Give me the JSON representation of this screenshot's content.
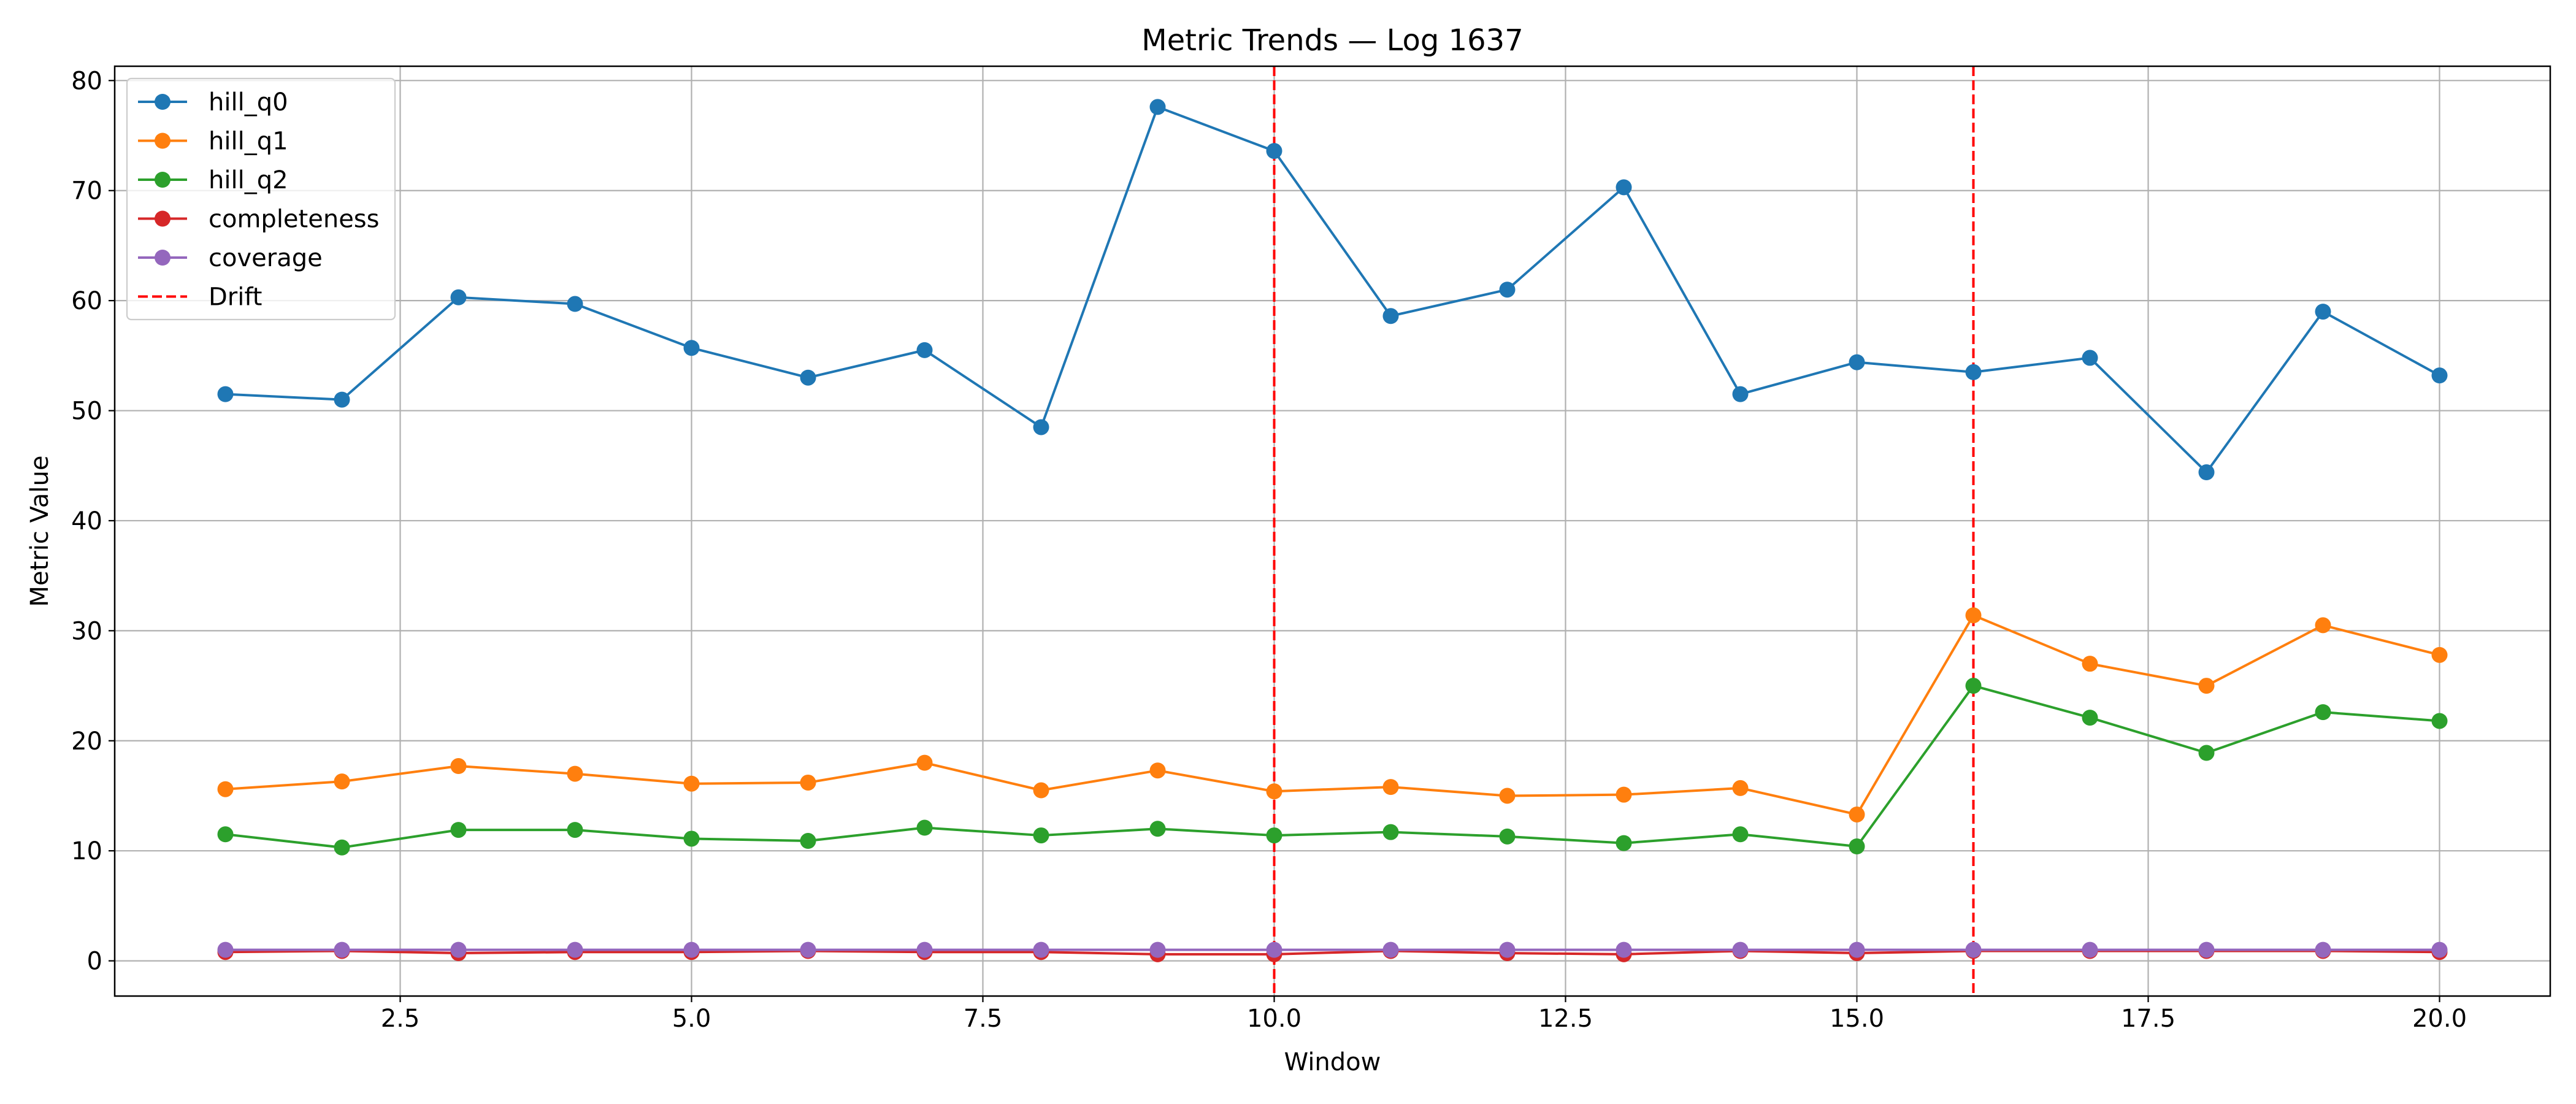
{
  "chart_data": {
    "type": "line",
    "title": "Metric Trends — Log 1637",
    "xlabel": "Window",
    "ylabel": "Metric Value",
    "x": [
      1,
      2,
      3,
      4,
      5,
      6,
      7,
      8,
      9,
      10,
      11,
      12,
      13,
      14,
      15,
      16,
      17,
      18,
      19,
      20
    ],
    "xlim": [
      0.05,
      20.95
    ],
    "ylim": [
      -3.2,
      81.3
    ],
    "xticks": [
      2.5,
      5.0,
      7.5,
      10.0,
      12.5,
      15.0,
      17.5,
      20.0
    ],
    "xtick_labels": [
      "2.5",
      "5.0",
      "7.5",
      "10.0",
      "12.5",
      "15.0",
      "17.5",
      "20.0"
    ],
    "yticks": [
      0,
      10,
      20,
      30,
      40,
      50,
      60,
      70,
      80
    ],
    "ytick_labels": [
      "0",
      "10",
      "20",
      "30",
      "40",
      "50",
      "60",
      "70",
      "80"
    ],
    "grid": true,
    "legend_position": "top-left",
    "series": [
      {
        "name": "hill_q0",
        "color": "#1f77b4",
        "values": [
          51.5,
          51.0,
          60.3,
          59.7,
          55.7,
          53.0,
          55.5,
          48.5,
          77.6,
          73.6,
          58.6,
          61.0,
          70.3,
          51.5,
          54.4,
          53.5,
          54.8,
          44.4,
          59.0,
          53.2
        ]
      },
      {
        "name": "hill_q1",
        "color": "#ff7f0e",
        "values": [
          15.6,
          16.3,
          17.7,
          17.0,
          16.1,
          16.2,
          18.0,
          15.5,
          17.3,
          15.4,
          15.8,
          15.0,
          15.1,
          15.7,
          13.3,
          31.4,
          27.0,
          25.0,
          30.5,
          27.8
        ]
      },
      {
        "name": "hill_q2",
        "color": "#2ca02c",
        "values": [
          11.5,
          10.3,
          11.9,
          11.9,
          11.1,
          10.9,
          12.1,
          11.4,
          12.0,
          11.4,
          11.7,
          11.3,
          10.7,
          11.5,
          10.4,
          25.0,
          22.1,
          18.9,
          22.6,
          21.8
        ]
      },
      {
        "name": "completeness",
        "color": "#d62728",
        "values": [
          0.8,
          0.9,
          0.7,
          0.8,
          0.8,
          0.9,
          0.8,
          0.8,
          0.6,
          0.6,
          0.9,
          0.7,
          0.6,
          0.9,
          0.7,
          0.9,
          0.9,
          0.9,
          0.9,
          0.8
        ]
      },
      {
        "name": "coverage",
        "color": "#9467bd",
        "values": [
          1.0,
          1.0,
          1.0,
          1.0,
          1.0,
          1.0,
          1.0,
          1.0,
          1.0,
          1.0,
          1.0,
          1.0,
          1.0,
          1.0,
          1.0,
          1.0,
          1.0,
          1.0,
          1.0,
          1.0
        ]
      }
    ],
    "drift": {
      "name": "Drift",
      "color": "#ff0000",
      "x": [
        10,
        16
      ]
    }
  }
}
